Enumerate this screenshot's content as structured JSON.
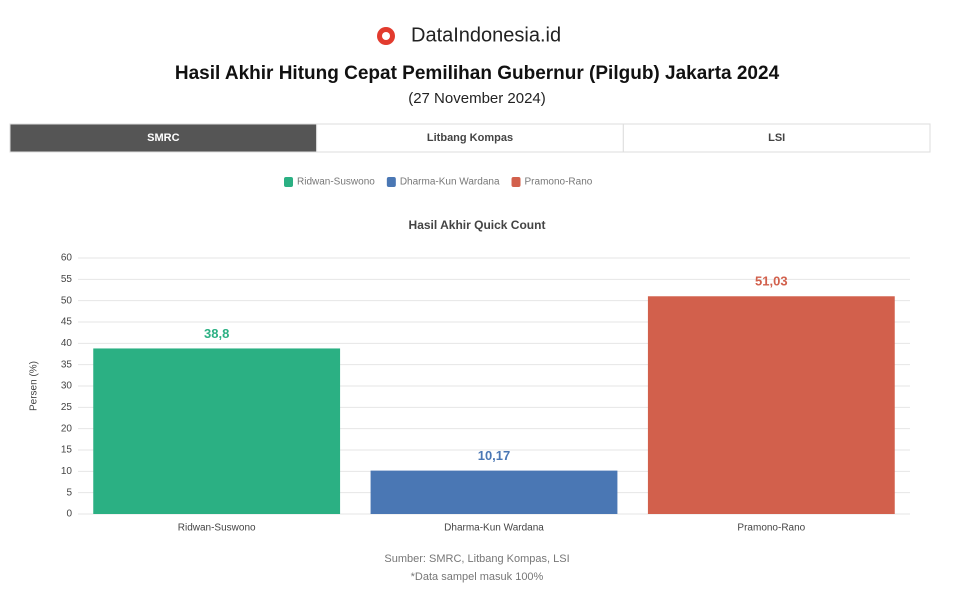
{
  "brand": "DataIndonesia.id",
  "header": {
    "title": "Hasil Akhir Hitung Cepat Pemilihan Gubernur (Pilgub) Jakarta 2024",
    "subtitle": "(27 November 2024)"
  },
  "tabs": [
    "SMRC",
    "Litbang Kompas",
    "LSI"
  ],
  "chart_data": {
    "type": "bar",
    "title": "Hasil Akhir Quick Count",
    "y_label": "Persen (%)",
    "categories": [
      "Ridwan-Suswono",
      "Dharma-Kun Wardana",
      "Pramono-Rano"
    ],
    "series": [
      {
        "name": "Ridwan-Suswono",
        "color": "#2bb083"
      },
      {
        "name": "Dharma-Kun Wardana",
        "color": "#4a77b4"
      },
      {
        "name": "Pramono-Rano",
        "color": "#d2604c"
      }
    ],
    "values": [
      38.8,
      10.17,
      51.03
    ],
    "value_labels": [
      "38,8",
      "10,17",
      "51,03"
    ],
    "ylim": [
      0,
      60
    ],
    "yticks": [
      0,
      5,
      10,
      15,
      20,
      25,
      30,
      35,
      40,
      45,
      50,
      55,
      60
    ],
    "grid": true
  },
  "footer": {
    "source": "Sumber: SMRC, Litbang Kompas, LSI",
    "note": "*Data sampel masuk 100%"
  }
}
